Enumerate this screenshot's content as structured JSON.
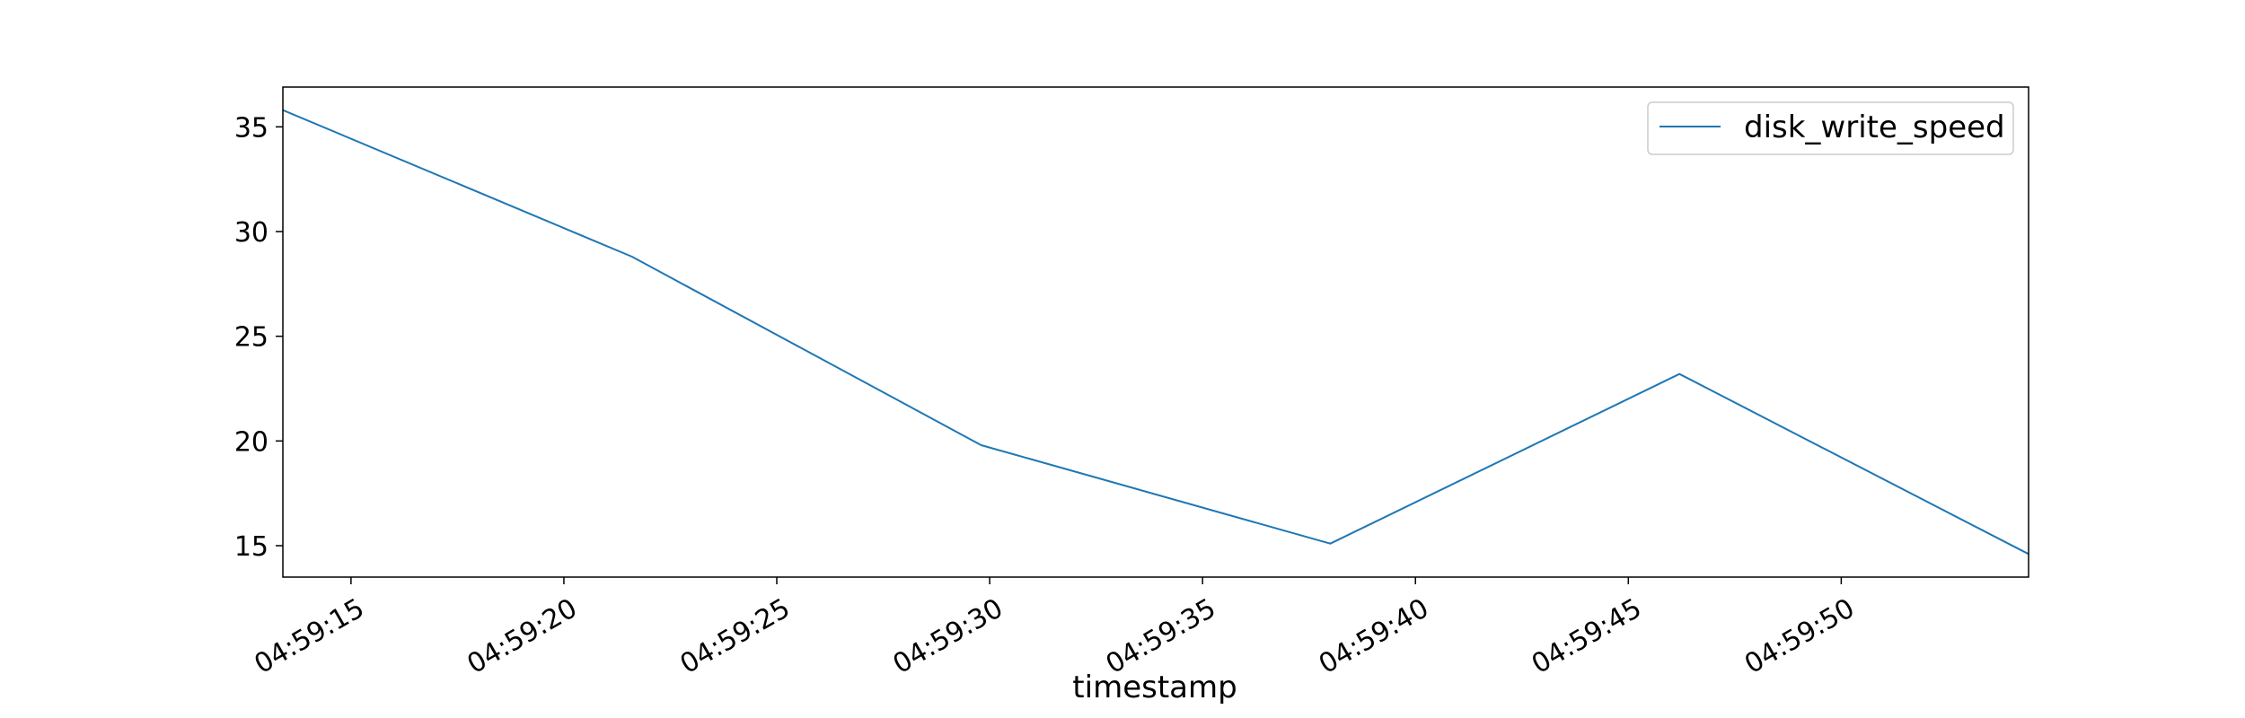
{
  "chart_data": {
    "type": "line",
    "title": "",
    "xlabel": "timestamp",
    "ylabel": "",
    "x": [
      "04:59:13.4",
      "04:59:21.6",
      "04:59:29.8",
      "04:59:38.0",
      "04:59:46.2",
      "04:59:54.4"
    ],
    "series": [
      {
        "name": "disk_write_speed",
        "color": "#1f77b4",
        "values": [
          35.8,
          28.8,
          19.8,
          15.1,
          23.2,
          14.6
        ]
      }
    ],
    "xlim": [
      "04:59:13.4",
      "04:59:54.4"
    ],
    "ylim": [
      13.5,
      36.9
    ],
    "xticks": [
      "04:59:15",
      "04:59:20",
      "04:59:25",
      "04:59:30",
      "04:59:35",
      "04:59:40",
      "04:59:45",
      "04:59:50"
    ],
    "yticks": [
      15,
      20,
      25,
      30,
      35
    ],
    "grid": false,
    "legend_position": "top-right"
  }
}
